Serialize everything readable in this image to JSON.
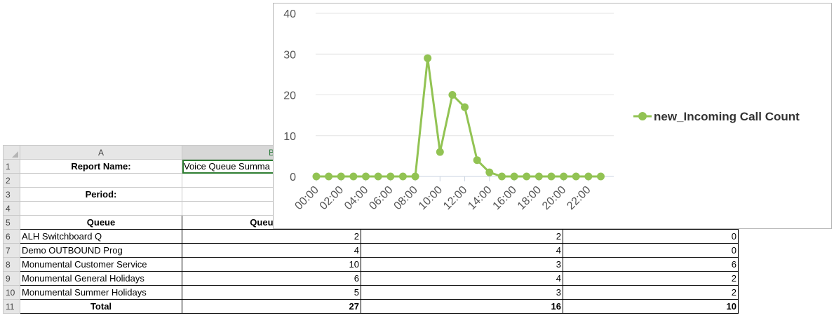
{
  "spreadsheet": {
    "col_headers": [
      "A",
      "B"
    ],
    "rows": [
      {
        "num": "1",
        "a": "Report Name:",
        "b": "Voice Queue Summa"
      },
      {
        "num": "2",
        "a": "",
        "b": ""
      },
      {
        "num": "3",
        "a": "Period:",
        "b": ""
      },
      {
        "num": "4",
        "a": "",
        "b": ""
      },
      {
        "num": "5",
        "a": "Queue",
        "b": "Queued C"
      },
      {
        "num": "6",
        "a": "ALH Switchboard Q",
        "b": "2",
        "c": "2",
        "d": "0"
      },
      {
        "num": "7",
        "a": "Demo OUTBOUND Prog",
        "b": "4",
        "c": "4",
        "d": "0"
      },
      {
        "num": "8",
        "a": "Monumental Customer Service",
        "b": "10",
        "c": "3",
        "d": "6"
      },
      {
        "num": "9",
        "a": "Monumental General Holidays",
        "b": "6",
        "c": "4",
        "d": "2"
      },
      {
        "num": "10",
        "a": "Monumental Summer Holidays",
        "b": "5",
        "c": "3",
        "d": "2"
      },
      {
        "num": "11",
        "a": "Total",
        "b": "27",
        "c": "16",
        "d": "10"
      }
    ]
  },
  "chart_data": {
    "type": "line",
    "title": "",
    "xlabel": "",
    "ylabel": "",
    "ylim": [
      0,
      40
    ],
    "yticks": [
      "0",
      "10",
      "20",
      "30",
      "40"
    ],
    "x_tick_labels": [
      "00:00",
      "02:00",
      "04:00",
      "06:00",
      "08:00",
      "10:00",
      "12:00",
      "14:00",
      "16:00",
      "18:00",
      "20:00",
      "22:00"
    ],
    "series": [
      {
        "name": "new_Incoming Call Count",
        "color": "#92c353",
        "values": [
          0,
          0,
          0,
          0,
          0,
          0,
          0,
          0,
          0,
          29,
          6,
          20,
          17,
          4,
          1,
          0,
          0,
          0,
          0,
          0,
          0,
          0,
          0,
          0
        ]
      }
    ],
    "grid": true,
    "legend_position": "right"
  }
}
